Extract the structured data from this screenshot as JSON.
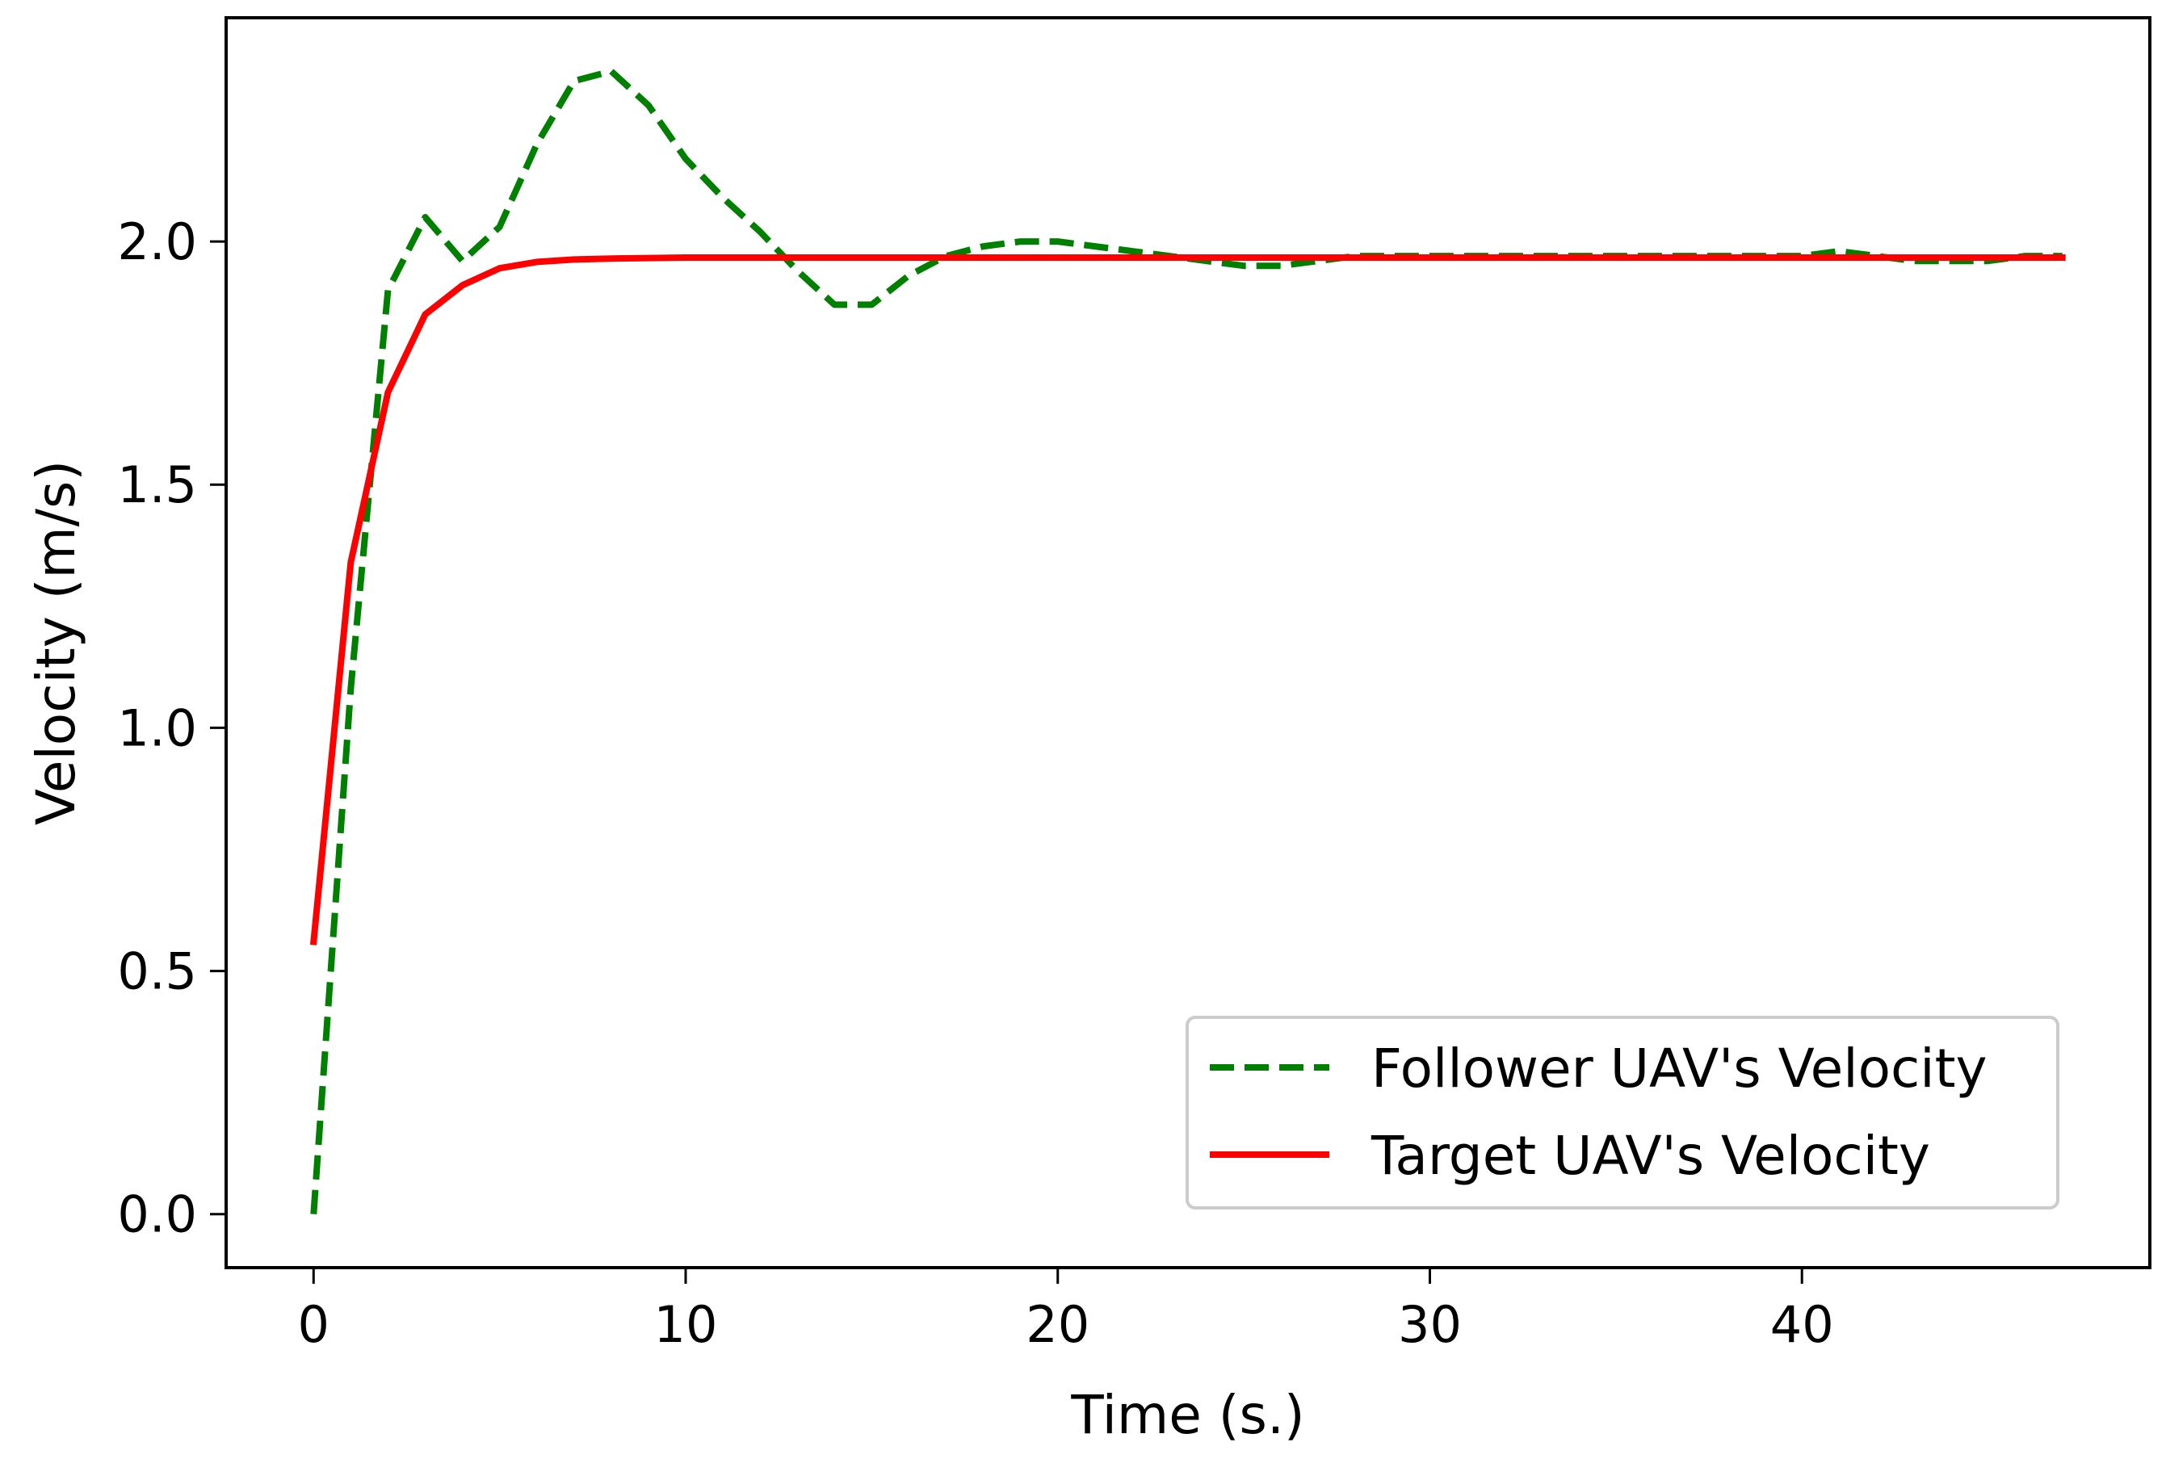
{
  "chart_data": {
    "type": "line",
    "title": "",
    "xlabel": "Time (s.)",
    "ylabel": "Velocity (m/s)",
    "xlim": [
      -2.35,
      49.35
    ],
    "ylim": [
      -0.11,
      2.46
    ],
    "xticks": [
      0,
      10,
      20,
      30,
      40
    ],
    "yticks": [
      0.0,
      0.5,
      1.0,
      1.5,
      2.0
    ],
    "ytick_labels": [
      "0.0",
      "0.5",
      "1.0",
      "1.5",
      "2.0"
    ],
    "grid": false,
    "legend_position": "lower-right",
    "series": [
      {
        "name": "Follower UAV's Velocity",
        "style": "dashed",
        "color": "#008000",
        "x": [
          0,
          1,
          2,
          3,
          4,
          5,
          6,
          7,
          8,
          9,
          10,
          11,
          12,
          13,
          14,
          15,
          16,
          17,
          18,
          19,
          20,
          21,
          22,
          23,
          24,
          25,
          26,
          27,
          28,
          29,
          30,
          31,
          32,
          33,
          34,
          35,
          36,
          37,
          38,
          39,
          40,
          41,
          42,
          43,
          44,
          45,
          46,
          47
        ],
        "y": [
          0.0,
          1.08,
          1.9,
          2.05,
          1.96,
          2.03,
          2.2,
          2.33,
          2.35,
          2.28,
          2.17,
          2.09,
          2.02,
          1.94,
          1.87,
          1.87,
          1.93,
          1.97,
          1.99,
          2.0,
          2.0,
          1.99,
          1.98,
          1.97,
          1.96,
          1.95,
          1.95,
          1.96,
          1.97,
          1.97,
          1.97,
          1.97,
          1.97,
          1.97,
          1.97,
          1.97,
          1.97,
          1.97,
          1.97,
          1.97,
          1.97,
          1.98,
          1.97,
          1.96,
          1.96,
          1.96,
          1.97,
          1.97
        ]
      },
      {
        "name": "Target UAV's Velocity",
        "style": "solid",
        "color": "#ff0000",
        "x": [
          0,
          1,
          2,
          3,
          4,
          5,
          6,
          7,
          8,
          9,
          10,
          15,
          20,
          25,
          30,
          35,
          40,
          45,
          47
        ],
        "y": [
          0.56,
          1.34,
          1.69,
          1.85,
          1.91,
          1.945,
          1.958,
          1.963,
          1.965,
          1.966,
          1.967,
          1.967,
          1.967,
          1.967,
          1.967,
          1.967,
          1.967,
          1.967,
          1.967
        ]
      }
    ]
  }
}
